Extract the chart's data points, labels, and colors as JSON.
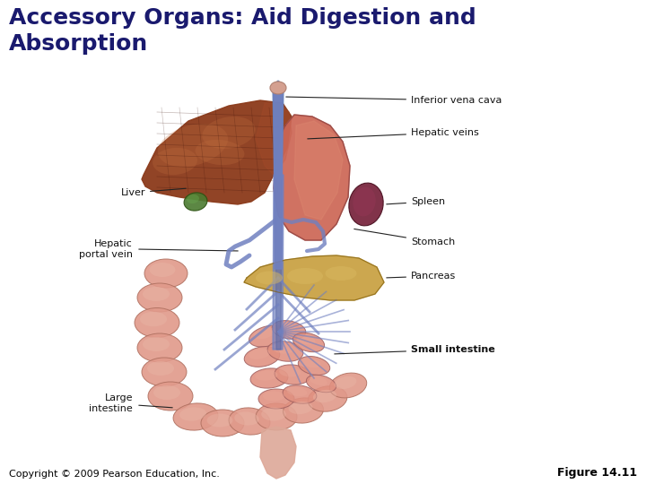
{
  "title_line1": "Accessory Organs: Aid Digestion and",
  "title_line2": "Absorption",
  "title_color": "#1a1a6e",
  "title_fontsize": 18,
  "title_fontweight": "bold",
  "copyright_text": "Copyright © 2009 Pearson Education, Inc.",
  "figure_label": "Figure 14.11",
  "footer_fontsize": 8,
  "footer_color": "#000000",
  "background_color": "#ffffff",
  "liver_color": "#8B3A1A",
  "liver_texture": "#6B2810",
  "liver_light": "#C47040",
  "gallbladder_color": "#4A7A30",
  "stomach_color": "#CC6655",
  "stomach_light": "#DD8870",
  "spleen_color": "#7A2840",
  "pancreas_color": "#C8A040",
  "pancreas_light": "#D8B860",
  "sm_int_color": "#E09080",
  "sm_int_light": "#EAA898",
  "lg_int_color": "#E0998A",
  "lg_int_light": "#EAB8A8",
  "vessel_color": "#7080C0",
  "vessel_dark": "#5060A0",
  "vena_cava_color": "#6080B8",
  "label_fontsize": 8,
  "label_bold_fontsize": 9
}
